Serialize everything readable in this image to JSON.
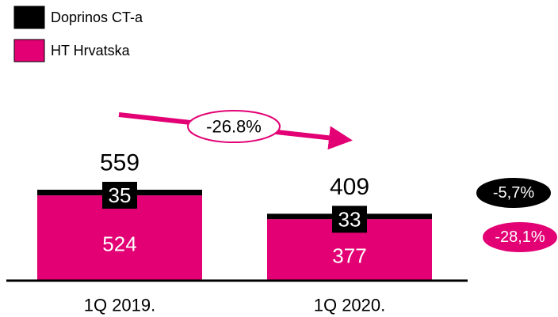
{
  "chart_data": {
    "type": "stacked-bar",
    "categories": [
      "1Q 2019.",
      "1Q 2020."
    ],
    "series": [
      {
        "name": "HT Hrvatska",
        "color": "#e20074",
        "values": [
          524,
          377
        ]
      },
      {
        "name": "Doprinos CT-a",
        "color": "#000000",
        "values": [
          35,
          33
        ]
      }
    ],
    "totals": [
      559,
      409
    ],
    "annotations": {
      "change": "-26.8%",
      "series_changes": [
        "-28,1%",
        "-5,7%"
      ]
    }
  }
}
